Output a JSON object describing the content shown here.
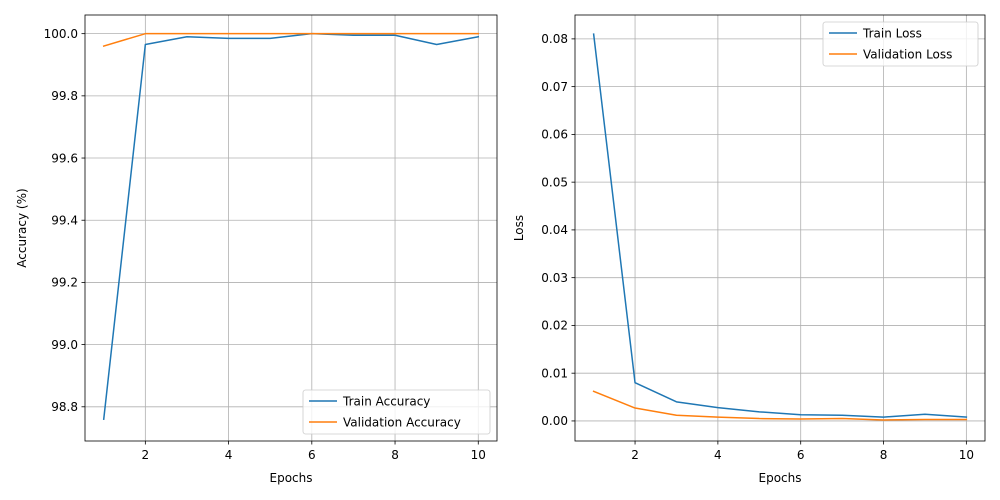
{
  "colors": {
    "train": "#1f77b4",
    "validation": "#ff7f0e"
  },
  "chart_data": [
    {
      "type": "line",
      "xlabel": "Epochs",
      "ylabel": "Accuracy (%)",
      "xlim": [
        0.55,
        10.45
      ],
      "ylim": [
        98.69,
        100.06
      ],
      "xticks": [
        2,
        4,
        6,
        8,
        10
      ],
      "yticks": [
        98.8,
        99.0,
        99.2,
        99.4,
        99.6,
        99.8,
        100.0
      ],
      "ytick_decimals": 1,
      "grid": true,
      "legend_position": "lower-right",
      "x": [
        1,
        2,
        3,
        4,
        5,
        6,
        7,
        8,
        9,
        10
      ],
      "series": [
        {
          "name": "Train Accuracy",
          "color_key": "train",
          "values": [
            98.76,
            99.965,
            99.99,
            99.985,
            99.985,
            100.0,
            99.995,
            99.995,
            99.965,
            99.99
          ]
        },
        {
          "name": "Validation Accuracy",
          "color_key": "validation",
          "values": [
            99.96,
            100.0,
            100.0,
            100.0,
            100.0,
            100.0,
            100.0,
            100.0,
            100.0,
            100.0
          ]
        }
      ]
    },
    {
      "type": "line",
      "xlabel": "Epochs",
      "ylabel": "Loss",
      "xlim": [
        0.55,
        10.45
      ],
      "ylim": [
        -0.0042,
        0.085
      ],
      "xticks": [
        2,
        4,
        6,
        8,
        10
      ],
      "yticks": [
        0.0,
        0.01,
        0.02,
        0.03,
        0.04,
        0.05,
        0.06,
        0.07,
        0.08
      ],
      "ytick_decimals": 2,
      "grid": true,
      "legend_position": "upper-right",
      "x": [
        1,
        2,
        3,
        4,
        5,
        6,
        7,
        8,
        9,
        10
      ],
      "series": [
        {
          "name": "Train Loss",
          "color_key": "train",
          "values": [
            0.081,
            0.008,
            0.004,
            0.0028,
            0.0019,
            0.0013,
            0.0012,
            0.0008,
            0.0014,
            0.0008
          ]
        },
        {
          "name": "Validation Loss",
          "color_key": "validation",
          "values": [
            0.0062,
            0.0027,
            0.0012,
            0.0008,
            0.0005,
            0.0004,
            0.0005,
            0.0002,
            0.0003,
            0.0003
          ]
        }
      ]
    }
  ]
}
